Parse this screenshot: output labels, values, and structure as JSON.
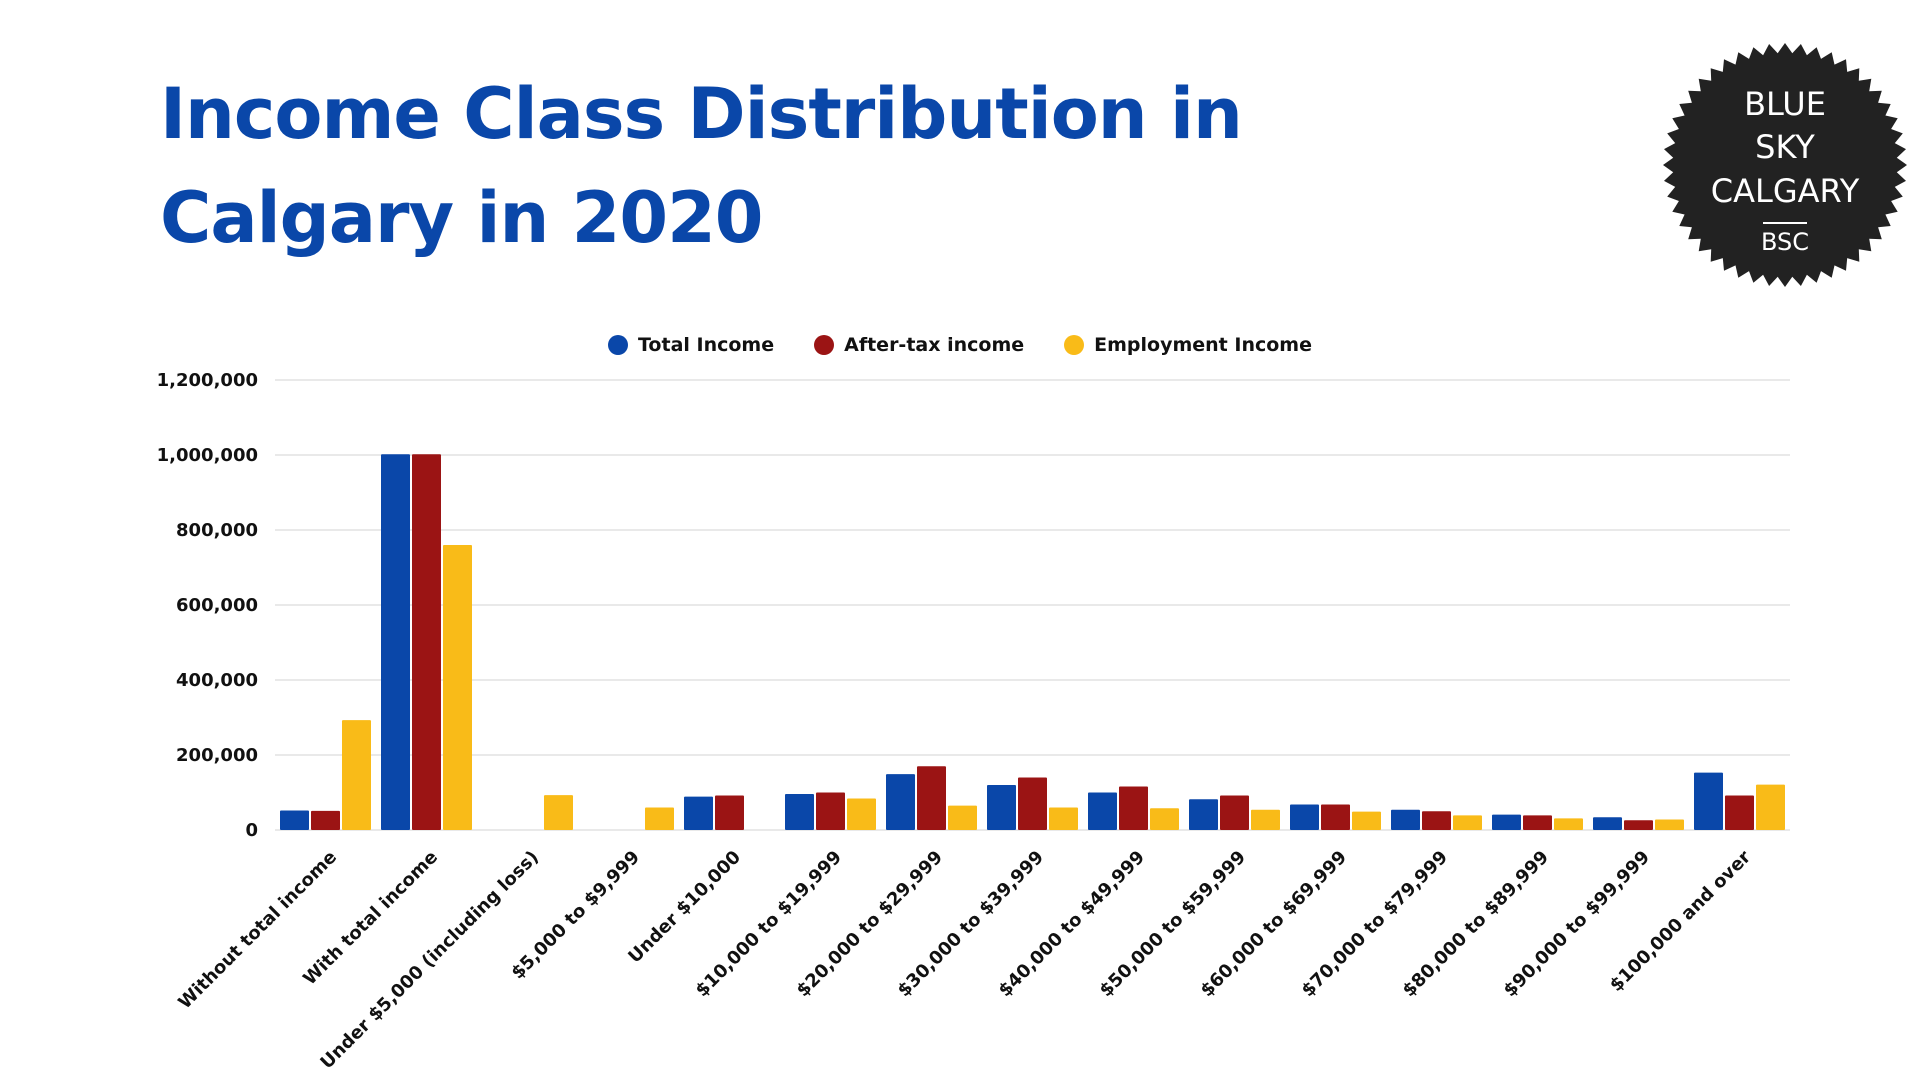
{
  "title_line1": "Income Class Distribution in",
  "title_line2": "Calgary in 2020",
  "logo": {
    "lines": [
      "BLUE",
      "SKY",
      "CALGARY"
    ],
    "abbr": "BSC"
  },
  "chart_data": {
    "type": "bar",
    "title": "Income Class Distribution in Calgary in 2020",
    "legend_position": "top",
    "grid": true,
    "ylim": [
      0,
      1200000
    ],
    "yticks": [
      "0",
      "200,000",
      "400,000",
      "600,000",
      "800,000",
      "1,000,000",
      "1,200,000"
    ],
    "ytick_values": [
      0,
      200000,
      400000,
      600000,
      800000,
      1000000,
      1200000
    ],
    "categories": [
      "Without total income",
      "With total income",
      "Under $5,000 (including loss)",
      "$5,000 to $9,999",
      "Under $10,000",
      "$10,000 to $19,999",
      "$20,000 to $29,999",
      "$30,000 to $39,999",
      "$40,000 to $49,999",
      "$50,000 to $59,999",
      "$60,000 to $69,999",
      "$70,000 to $79,999",
      "$80,000 to $89,999",
      "$90,000 to $99,999",
      "$100,000 and over"
    ],
    "series": [
      {
        "name": "Total Income",
        "color": "#0a47a9",
        "values": [
          52000,
          1002000,
          0,
          0,
          89000,
          96000,
          149000,
          120000,
          100000,
          82000,
          68000,
          54000,
          41000,
          34000,
          153000
        ]
      },
      {
        "name": "After-tax income",
        "color": "#9b1414",
        "values": [
          51000,
          1002000,
          0,
          0,
          92000,
          100000,
          170000,
          140000,
          116000,
          92000,
          68000,
          50000,
          39000,
          26000,
          92000
        ]
      },
      {
        "name": "Employment Income",
        "color": "#f9bb18",
        "values": [
          293000,
          760000,
          93000,
          60000,
          0,
          84000,
          65000,
          60000,
          58000,
          54000,
          49000,
          39000,
          31000,
          28000,
          121000
        ]
      }
    ]
  }
}
